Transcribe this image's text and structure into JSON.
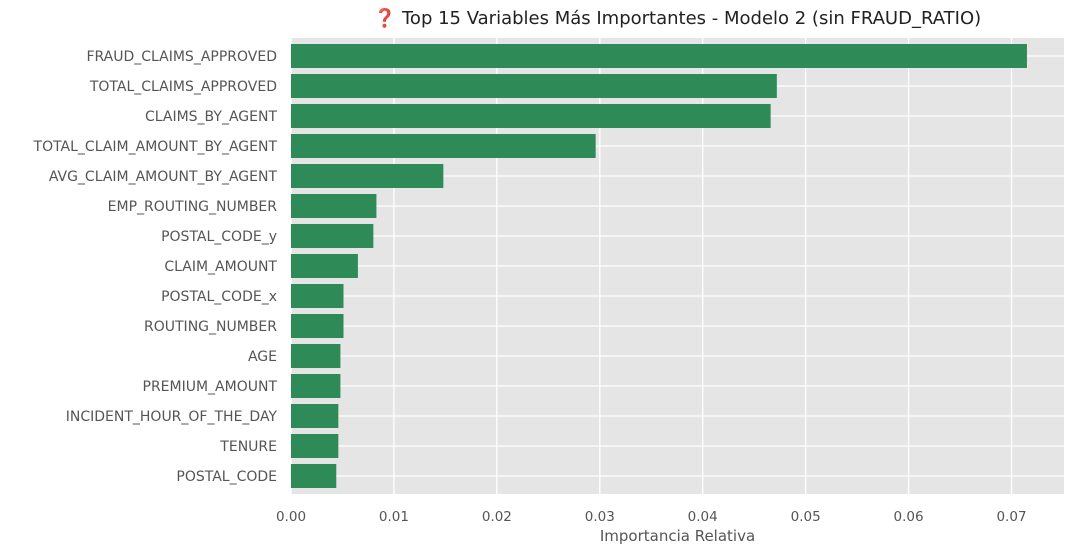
{
  "chart_data": {
    "type": "bar",
    "orientation": "horizontal",
    "title": "❓ Top 15 Variables Más Importantes - Modelo 2 (sin FRAUD_RATIO)",
    "xlabel": "Importancia Relativa",
    "ylabel": "",
    "xlim": [
      0,
      0.0751
    ],
    "xticks": [
      0.0,
      0.01,
      0.02,
      0.03,
      0.04,
      0.05,
      0.06,
      0.07
    ],
    "xtick_labels": [
      "0.00",
      "0.01",
      "0.02",
      "0.03",
      "0.04",
      "0.05",
      "0.06",
      "0.07"
    ],
    "grid": true,
    "bar_color": "#2e8b57",
    "background_color": "#e5e5e5",
    "categories": [
      "FRAUD_CLAIMS_APPROVED",
      "TOTAL_CLAIMS_APPROVED",
      "CLAIMS_BY_AGENT",
      "TOTAL_CLAIM_AMOUNT_BY_AGENT",
      "AVG_CLAIM_AMOUNT_BY_AGENT",
      "EMP_ROUTING_NUMBER",
      "POSTAL_CODE_y",
      "CLAIM_AMOUNT",
      "POSTAL_CODE_x",
      "ROUTING_NUMBER",
      "AGE",
      "PREMIUM_AMOUNT",
      "INCIDENT_HOUR_OF_THE_DAY",
      "TENURE",
      "POSTAL_CODE"
    ],
    "values": [
      0.0715,
      0.0472,
      0.0466,
      0.0296,
      0.0148,
      0.0083,
      0.008,
      0.0065,
      0.0051,
      0.0051,
      0.0048,
      0.0048,
      0.0046,
      0.0046,
      0.0044
    ]
  }
}
